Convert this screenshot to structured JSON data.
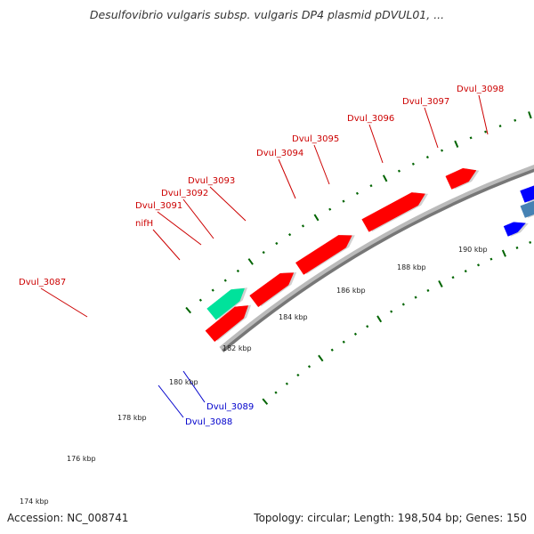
{
  "title": "Desulfovibrio vulgaris subsp. vulgaris DP4 plasmid pDVUL01, ...",
  "footer": {
    "accession": "Accession: NC_008741",
    "summary": "Topology: circular; Length: 198,504 bp; Genes: 150"
  },
  "colors": {
    "forward_cds": "#ff0000",
    "cyan_gene": "#00ffff",
    "steel_gene": "#4682b4",
    "navy_gene": "#483d8b",
    "blue_gene": "#0000ff",
    "teal_gene": "#00e29b",
    "gray_gene": "#c0c0c0",
    "backbone": "#777777",
    "tick": "#006400",
    "label_red": "#cc0000",
    "label_blue": "#0000cc"
  },
  "scale_labels": [
    "174 kbp",
    "176 kbp",
    "178 kbp",
    "180 kbp",
    "182 kbp",
    "184 kbp",
    "186 kbp",
    "188 kbp",
    "190 kbp"
  ],
  "gene_labels": [
    {
      "text": "Dvul_3087",
      "color": "red"
    },
    {
      "text": "nifH",
      "color": "red"
    },
    {
      "text": "Dvul_3091",
      "color": "red"
    },
    {
      "text": "Dvul_3092",
      "color": "red"
    },
    {
      "text": "Dvul_3093",
      "color": "red"
    },
    {
      "text": "Dvul_3094",
      "color": "red"
    },
    {
      "text": "Dvul_3095",
      "color": "red"
    },
    {
      "text": "Dvul_3096",
      "color": "red"
    },
    {
      "text": "Dvul_3097",
      "color": "red"
    },
    {
      "text": "Dvul_3098",
      "color": "red"
    },
    {
      "text": "Dvul_3089",
      "color": "blue"
    },
    {
      "text": "Dvul_3088",
      "color": "blue"
    }
  ]
}
